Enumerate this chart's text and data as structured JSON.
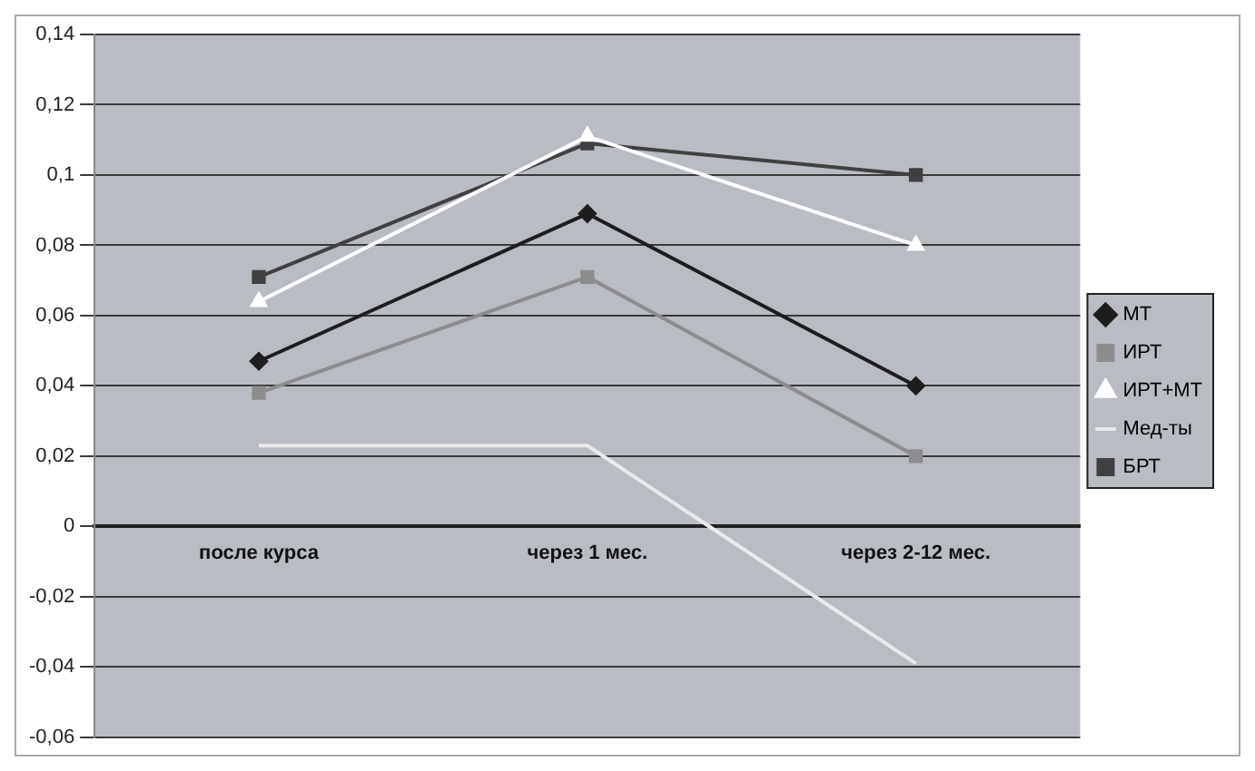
{
  "chart_data": {
    "type": "line",
    "categories": [
      "после курса",
      "через 1 мес.",
      "через 2-12 мес."
    ],
    "series": [
      {
        "name": "МТ",
        "color": "#1e1e1e",
        "marker": "diamond",
        "values": [
          0.047,
          0.089,
          0.04
        ]
      },
      {
        "name": "ИРТ",
        "color": "#8c8c8c",
        "marker": "square",
        "values": [
          0.038,
          0.071,
          0.02
        ]
      },
      {
        "name": "ИРТ+МТ",
        "color": "#ffffff",
        "marker": "triangle",
        "values": [
          0.064,
          0.111,
          0.08
        ]
      },
      {
        "name": "Мед-ты",
        "color": "#ebebeb",
        "marker": "none",
        "values": [
          0.023,
          0.023,
          -0.039
        ]
      },
      {
        "name": "БРТ",
        "color": "#404040",
        "marker": "square",
        "values": [
          0.071,
          0.109,
          0.1
        ]
      }
    ],
    "ylim": [
      -0.06,
      0.14
    ],
    "yticks": [
      {
        "value": -0.06,
        "label": "-0,06"
      },
      {
        "value": -0.04,
        "label": "-0,04"
      },
      {
        "value": -0.02,
        "label": "-0,02"
      },
      {
        "value": 0,
        "label": "0"
      },
      {
        "value": 0.02,
        "label": "0,02"
      },
      {
        "value": 0.04,
        "label": "0,04"
      },
      {
        "value": 0.06,
        "label": "0,06"
      },
      {
        "value": 0.08,
        "label": "0,08"
      },
      {
        "value": 0.1,
        "label": "0,1"
      },
      {
        "value": 0.12,
        "label": "0,12"
      },
      {
        "value": 0.14,
        "label": "0,14"
      }
    ],
    "grid": "y",
    "legend": "right",
    "line_style": "solid"
  }
}
